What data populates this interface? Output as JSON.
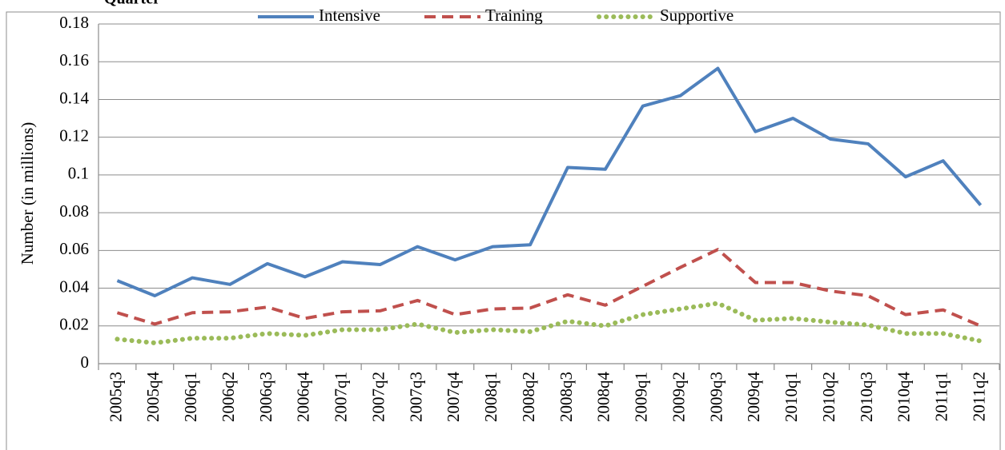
{
  "chart_data": {
    "type": "line",
    "subtitle": "Quarter",
    "ylabel": "Number (in millions)",
    "categories": [
      "2005q3",
      "2005q4",
      "2006q1",
      "2006q2",
      "2006q3",
      "2006q4",
      "2007q1",
      "2007q2",
      "2007q3",
      "2007q4",
      "2008q1",
      "2008q2",
      "2008q3",
      "2008q4",
      "2009q1",
      "2009q2",
      "2009q3",
      "2009q4",
      "2010q1",
      "2010q2",
      "2010q3",
      "2010q4",
      "2011q1",
      "2011q2"
    ],
    "series": [
      {
        "name": "Intensive",
        "color": "#4f81bd",
        "dash": "solid",
        "values": [
          0.044,
          0.036,
          0.0455,
          0.042,
          0.053,
          0.046,
          0.054,
          0.0525,
          0.062,
          0.055,
          0.062,
          0.063,
          0.104,
          0.103,
          0.1365,
          0.142,
          0.1565,
          0.123,
          0.13,
          0.119,
          0.1165,
          0.099,
          0.1075,
          0.084
        ]
      },
      {
        "name": "Training",
        "color": "#c0504d",
        "dash": "dashed",
        "values": [
          0.027,
          0.021,
          0.027,
          0.0275,
          0.03,
          0.024,
          0.0275,
          0.028,
          0.0335,
          0.026,
          0.029,
          0.0295,
          0.0365,
          0.031,
          0.041,
          0.051,
          0.0605,
          0.043,
          0.043,
          0.0385,
          0.036,
          0.026,
          0.0285,
          0.02
        ]
      },
      {
        "name": "Supportive",
        "color": "#9bbb59",
        "dash": "dotted",
        "values": [
          0.013,
          0.011,
          0.0135,
          0.0135,
          0.016,
          0.015,
          0.018,
          0.018,
          0.021,
          0.0165,
          0.018,
          0.017,
          0.0225,
          0.02,
          0.026,
          0.029,
          0.032,
          0.023,
          0.024,
          0.022,
          0.0205,
          0.016,
          0.016,
          0.012
        ]
      }
    ],
    "ylim": [
      0,
      0.18
    ],
    "yticks": [
      0,
      0.02,
      0.04,
      0.06,
      0.08,
      0.1,
      0.12,
      0.14,
      0.16,
      0.18
    ],
    "grid": true,
    "legend": "top"
  }
}
